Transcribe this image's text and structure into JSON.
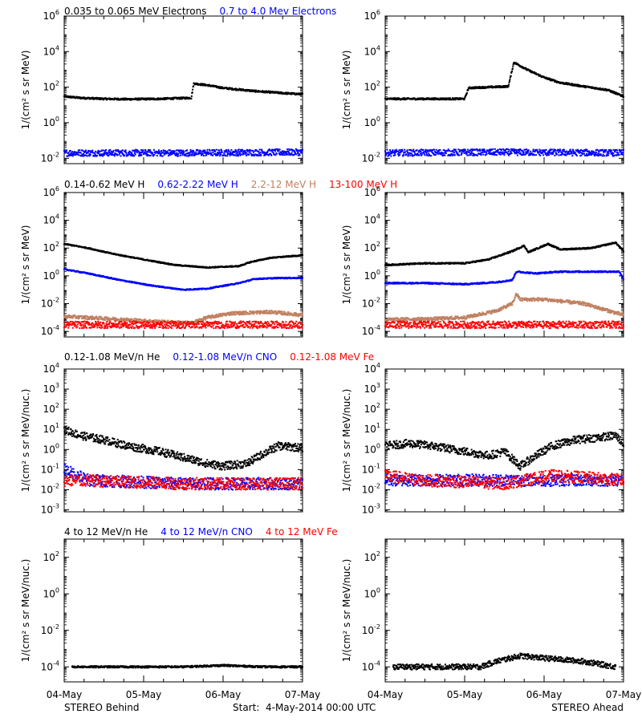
{
  "colors": {
    "black": "#000000",
    "blue": "#0000ff",
    "tan": "#c08060",
    "red": "#ff0000"
  },
  "headers": [
    [
      {
        "text": "0.035 to 0.065 MeV Electrons",
        "color": "black"
      },
      {
        "text": "0.7 to 4.0 Mev Electrons",
        "color": "blue"
      }
    ],
    [
      {
        "text": "0.14-0.62 MeV H",
        "color": "black"
      },
      {
        "text": "0.62-2.22 MeV H",
        "color": "blue"
      },
      {
        "text": "2.2-12 MeV H",
        "color": "tan"
      },
      {
        "text": "13-100 MeV H",
        "color": "red"
      }
    ],
    [
      {
        "text": "0.12-1.08 MeV/n He",
        "color": "black"
      },
      {
        "text": "0.12-1.08 MeV/n CNO",
        "color": "blue"
      },
      {
        "text": "0.12-1.08 MeV Fe",
        "color": "red"
      }
    ],
    [
      {
        "text": "4 to 12 MeV/n He",
        "color": "black"
      },
      {
        "text": "4 to 12 MeV/n CNO",
        "color": "blue"
      },
      {
        "text": "4 to 12 MeV Fe",
        "color": "red"
      }
    ]
  ],
  "x_tick_labels": [
    "04-May",
    "05-May",
    "06-May",
    "07-May"
  ],
  "footer": {
    "left": "STEREO Behind",
    "center": "Start:  4-May-2014 00:00 UTC",
    "right": "STEREO Ahead"
  },
  "chart_data": [
    {
      "id": "electrons-behind",
      "type": "scatter",
      "scale": "log",
      "ylabel": "1/(cm² s sr MeV)",
      "ylim": [
        0.005,
        1000000
      ],
      "yticks": [
        {
          "v": 0.01,
          "t": "10",
          "e": "-2"
        },
        {
          "v": 1,
          "t": "10",
          "e": "0"
        },
        {
          "v": 100,
          "t": "10",
          "e": "2"
        },
        {
          "v": 10000,
          "t": "10",
          "e": "4"
        },
        {
          "v": 1000000,
          "t": "10",
          "e": "6"
        }
      ],
      "x_days": [
        0,
        3
      ],
      "series": [
        {
          "color": "black",
          "points": [
            [
              0,
              30
            ],
            [
              0.2,
              25
            ],
            [
              0.5,
              22
            ],
            [
              0.8,
              21
            ],
            [
              1.2,
              22
            ],
            [
              1.6,
              25
            ],
            [
              1.63,
              160
            ],
            [
              1.8,
              130
            ],
            [
              2.0,
              90
            ],
            [
              2.4,
              60
            ],
            [
              2.8,
              45
            ],
            [
              3.0,
              40
            ]
          ],
          "scatter": 0.05
        },
        {
          "color": "blue",
          "points": [
            [
              0,
              0.02
            ],
            [
              1.5,
              0.02
            ],
            [
              3.0,
              0.022
            ]
          ],
          "scatter": 0.18
        }
      ]
    },
    {
      "id": "electrons-ahead",
      "type": "scatter",
      "scale": "log",
      "ylabel": "1/(cm² s sr MeV)",
      "ylim": [
        0.005,
        1000000
      ],
      "yticks": [
        {
          "v": 0.01,
          "t": "10",
          "e": "-2"
        },
        {
          "v": 1,
          "t": "10",
          "e": "0"
        },
        {
          "v": 100,
          "t": "10",
          "e": "2"
        },
        {
          "v": 10000,
          "t": "10",
          "e": "4"
        },
        {
          "v": 1000000,
          "t": "10",
          "e": "6"
        }
      ],
      "x_days": [
        0,
        3
      ],
      "series": [
        {
          "color": "black",
          "points": [
            [
              0,
              22
            ],
            [
              0.5,
              22
            ],
            [
              1.0,
              22
            ],
            [
              1.05,
              90
            ],
            [
              1.3,
              100
            ],
            [
              1.55,
              110
            ],
            [
              1.62,
              2500
            ],
            [
              1.8,
              900
            ],
            [
              2.0,
              350
            ],
            [
              2.2,
              180
            ],
            [
              2.5,
              110
            ],
            [
              2.8,
              70
            ],
            [
              3.0,
              30
            ]
          ],
          "scatter": 0.05
        },
        {
          "color": "blue",
          "points": [
            [
              0,
              0.02
            ],
            [
              1.5,
              0.022
            ],
            [
              3.0,
              0.02
            ]
          ],
          "scatter": 0.18
        }
      ]
    },
    {
      "id": "protons-behind",
      "type": "scatter",
      "scale": "log",
      "ylabel": "1/(cm² s sr MeV)",
      "ylim": [
        4e-05,
        1000000
      ],
      "yticks": [
        {
          "v": 0.0001,
          "t": "10",
          "e": "-4"
        },
        {
          "v": 0.01,
          "t": "10",
          "e": "-2"
        },
        {
          "v": 1,
          "t": "10",
          "e": "0"
        },
        {
          "v": 100,
          "t": "10",
          "e": "2"
        },
        {
          "v": 10000,
          "t": "10",
          "e": "4"
        },
        {
          "v": 1000000,
          "t": "10",
          "e": "6"
        }
      ],
      "x_days": [
        0,
        3
      ],
      "series": [
        {
          "color": "black",
          "points": [
            [
              0,
              200
            ],
            [
              0.3,
              100
            ],
            [
              0.6,
              40
            ],
            [
              1.0,
              15
            ],
            [
              1.4,
              6
            ],
            [
              1.8,
              4
            ],
            [
              2.2,
              5
            ],
            [
              2.35,
              10
            ],
            [
              2.6,
              20
            ],
            [
              3.0,
              30
            ]
          ],
          "scatter": 0.04
        },
        {
          "color": "blue",
          "points": [
            [
              0,
              3
            ],
            [
              0.3,
              1.5
            ],
            [
              0.7,
              0.5
            ],
            [
              1.1,
              0.2
            ],
            [
              1.5,
              0.1
            ],
            [
              1.8,
              0.12
            ],
            [
              2.2,
              0.3
            ],
            [
              2.4,
              0.6
            ],
            [
              2.7,
              0.7
            ],
            [
              3.0,
              0.7
            ]
          ],
          "scatter": 0.04
        },
        {
          "color": "tan",
          "points": [
            [
              0,
              0.0012
            ],
            [
              0.6,
              0.0008
            ],
            [
              1.2,
              0.0005
            ],
            [
              1.6,
              0.0004
            ],
            [
              1.8,
              0.001
            ],
            [
              2.1,
              0.002
            ],
            [
              2.6,
              0.0025
            ],
            [
              3.0,
              0.0015
            ]
          ],
          "scatter": 0.12
        },
        {
          "color": "red",
          "points": [
            [
              0,
              0.0003
            ],
            [
              1.5,
              0.0003
            ],
            [
              3.0,
              0.0003
            ]
          ],
          "scatter": 0.25
        }
      ]
    },
    {
      "id": "protons-ahead",
      "type": "scatter",
      "scale": "log",
      "ylabel": "1/(cm² s sr MeV)",
      "ylim": [
        4e-05,
        1000000
      ],
      "yticks": [
        {
          "v": 0.0001,
          "t": "10",
          "e": "-4"
        },
        {
          "v": 0.01,
          "t": "10",
          "e": "-2"
        },
        {
          "v": 1,
          "t": "10",
          "e": "0"
        },
        {
          "v": 100,
          "t": "10",
          "e": "2"
        },
        {
          "v": 10000,
          "t": "10",
          "e": "4"
        },
        {
          "v": 1000000,
          "t": "10",
          "e": "6"
        }
      ],
      "x_days": [
        0,
        3
      ],
      "series": [
        {
          "color": "black",
          "points": [
            [
              0,
              6
            ],
            [
              0.5,
              8
            ],
            [
              1.0,
              8
            ],
            [
              1.3,
              15
            ],
            [
              1.6,
              60
            ],
            [
              1.75,
              150
            ],
            [
              1.8,
              50
            ],
            [
              2.05,
              200
            ],
            [
              2.2,
              80
            ],
            [
              2.6,
              100
            ],
            [
              2.9,
              250
            ],
            [
              3.0,
              60
            ]
          ],
          "scatter": 0.05
        },
        {
          "color": "blue",
          "points": [
            [
              0,
              0.3
            ],
            [
              0.5,
              0.3
            ],
            [
              1.0,
              0.25
            ],
            [
              1.4,
              0.35
            ],
            [
              1.6,
              0.5
            ],
            [
              1.65,
              2
            ],
            [
              1.9,
              1.5
            ],
            [
              2.2,
              2
            ],
            [
              2.6,
              2
            ],
            [
              2.95,
              2
            ],
            [
              3.0,
              0.6
            ]
          ],
          "scatter": 0.05
        },
        {
          "color": "tan",
          "points": [
            [
              0,
              0.0007
            ],
            [
              0.6,
              0.0008
            ],
            [
              1.0,
              0.001
            ],
            [
              1.4,
              0.003
            ],
            [
              1.6,
              0.01
            ],
            [
              1.65,
              0.05
            ],
            [
              1.7,
              0.02
            ],
            [
              2.0,
              0.02
            ],
            [
              2.5,
              0.01
            ],
            [
              3.0,
              0.0015
            ]
          ],
          "scatter": 0.12
        },
        {
          "color": "red",
          "points": [
            [
              0,
              0.0003
            ],
            [
              1.5,
              0.0003
            ],
            [
              3.0,
              0.0003
            ]
          ],
          "scatter": 0.25
        }
      ]
    },
    {
      "id": "heavy-low-behind",
      "type": "scatter",
      "scale": "log",
      "ylabel": "1/(cm² s sr MeV/nuc.)",
      "ylim": [
        0.0008,
        10000
      ],
      "yticks": [
        {
          "v": 0.001,
          "t": "10",
          "e": "-3"
        },
        {
          "v": 0.01,
          "t": "10",
          "e": "-2"
        },
        {
          "v": 0.1,
          "t": "10",
          "e": "-1"
        },
        {
          "v": 1,
          "t": "10",
          "e": "0"
        },
        {
          "v": 10,
          "t": "10",
          "e": "1"
        },
        {
          "v": 100,
          "t": "10",
          "e": "2"
        },
        {
          "v": 1000,
          "t": "10",
          "e": "3"
        },
        {
          "v": 10000,
          "t": "10",
          "e": "4"
        }
      ],
      "x_days": [
        0,
        3
      ],
      "series": [
        {
          "color": "black",
          "points": [
            [
              0,
              10
            ],
            [
              0.2,
              5
            ],
            [
              0.5,
              3
            ],
            [
              0.8,
              1.5
            ],
            [
              1.2,
              0.8
            ],
            [
              1.5,
              0.4
            ],
            [
              1.8,
              0.2
            ],
            [
              2.0,
              0.15
            ],
            [
              2.3,
              0.2
            ],
            [
              2.5,
              0.6
            ],
            [
              2.7,
              1.5
            ],
            [
              3.0,
              1.2
            ]
          ],
          "scatter": 0.2
        },
        {
          "color": "blue",
          "points": [
            [
              0,
              0.1
            ],
            [
              0.3,
              0.03
            ],
            [
              1.5,
              0.02
            ],
            [
              3.0,
              0.02
            ]
          ],
          "scatter": 0.3
        },
        {
          "color": "red",
          "points": [
            [
              0,
              0.03
            ],
            [
              1.5,
              0.02
            ],
            [
              3.0,
              0.02
            ]
          ],
          "scatter": 0.3
        }
      ]
    },
    {
      "id": "heavy-low-ahead",
      "type": "scatter",
      "scale": "log",
      "ylabel": "1/(cm² s sr MeV/nuc.)",
      "ylim": [
        0.0008,
        10000
      ],
      "yticks": [
        {
          "v": 0.001,
          "t": "10",
          "e": "-3"
        },
        {
          "v": 0.01,
          "t": "10",
          "e": "-2"
        },
        {
          "v": 0.1,
          "t": "10",
          "e": "-1"
        },
        {
          "v": 1,
          "t": "10",
          "e": "0"
        },
        {
          "v": 10,
          "t": "10",
          "e": "1"
        },
        {
          "v": 100,
          "t": "10",
          "e": "2"
        },
        {
          "v": 1000,
          "t": "10",
          "e": "3"
        },
        {
          "v": 10000,
          "t": "10",
          "e": "4"
        }
      ],
      "x_days": [
        0,
        3
      ],
      "series": [
        {
          "color": "black",
          "points": [
            [
              0,
              1.5
            ],
            [
              0.3,
              2
            ],
            [
              0.6,
              1.5
            ],
            [
              1.0,
              0.8
            ],
            [
              1.3,
              0.5
            ],
            [
              1.5,
              0.8
            ],
            [
              1.7,
              0.15
            ],
            [
              1.9,
              0.5
            ],
            [
              2.1,
              1.5
            ],
            [
              2.4,
              3
            ],
            [
              2.7,
              4
            ],
            [
              2.9,
              5
            ],
            [
              3.0,
              2
            ]
          ],
          "scatter": 0.2
        },
        {
          "color": "blue",
          "points": [
            [
              0,
              0.03
            ],
            [
              1.5,
              0.03
            ],
            [
              3.0,
              0.03
            ]
          ],
          "scatter": 0.3
        },
        {
          "color": "red",
          "points": [
            [
              0,
              0.05
            ],
            [
              0.4,
              0.03
            ],
            [
              1.5,
              0.02
            ],
            [
              2.1,
              0.05
            ],
            [
              3.0,
              0.03
            ]
          ],
          "scatter": 0.3
        }
      ]
    },
    {
      "id": "heavy-high-behind",
      "type": "scatter",
      "scale": "log",
      "ylabel": "1/(cm² s sr MeV/nuc.)",
      "ylim": [
        1.5e-05,
        1000
      ],
      "yticks": [
        {
          "v": 0.0001,
          "t": "10",
          "e": "-4"
        },
        {
          "v": 0.01,
          "t": "10",
          "e": "-2"
        },
        {
          "v": 1,
          "t": "10",
          "e": "0"
        },
        {
          "v": 100,
          "t": "10",
          "e": "2"
        }
      ],
      "x_days": [
        0,
        3
      ],
      "series": [
        {
          "color": "black",
          "points": [
            [
              0.1,
              0.0001
            ],
            [
              1.0,
              0.0001
            ],
            [
              1.5,
              0.0001
            ],
            [
              2.0,
              0.00012
            ],
            [
              2.5,
              0.0001
            ],
            [
              3.0,
              0.0001
            ]
          ],
          "scatter": 0.05
        }
      ]
    },
    {
      "id": "heavy-high-ahead",
      "type": "scatter",
      "scale": "log",
      "ylabel": "1/(cm² s sr MeV/nuc.)",
      "ylim": [
        1.5e-05,
        1000
      ],
      "yticks": [
        {
          "v": 0.0001,
          "t": "10",
          "e": "-4"
        },
        {
          "v": 0.01,
          "t": "10",
          "e": "-2"
        },
        {
          "v": 1,
          "t": "10",
          "e": "0"
        },
        {
          "v": 100,
          "t": "10",
          "e": "2"
        }
      ],
      "x_days": [
        0,
        3
      ],
      "series": [
        {
          "color": "black",
          "points": [
            [
              0.1,
              0.0001
            ],
            [
              1.2,
              0.0001
            ],
            [
              1.4,
              0.0002
            ],
            [
              1.7,
              0.0004
            ],
            [
              2.0,
              0.0003
            ],
            [
              2.5,
              0.0002
            ],
            [
              2.9,
              0.0001
            ]
          ],
          "scatter": 0.15
        }
      ]
    }
  ]
}
